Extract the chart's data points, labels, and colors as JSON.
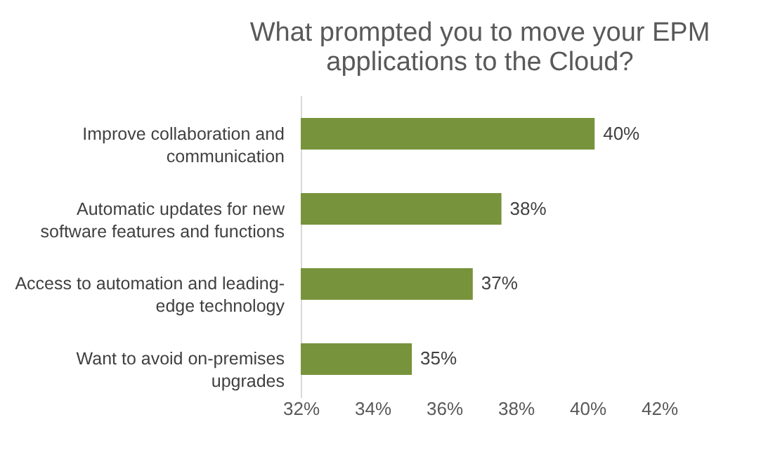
{
  "chart_data": {
    "type": "bar",
    "orientation": "horizontal",
    "title": "What prompted you to move your EPM applications to the Cloud?",
    "categories": [
      "Improve collaboration and communication",
      "Automatic updates for new software features and functions",
      "Access to automation and leading-edge technology",
      "Want to avoid on-premises upgrades"
    ],
    "values": [
      40.2,
      37.6,
      36.8,
      35.1
    ],
    "value_labels": [
      "40%",
      "38%",
      "37%",
      "35%"
    ],
    "color": "#77933c",
    "xlim": [
      32,
      42
    ],
    "xticks": [
      {
        "value": 32,
        "label": "32%"
      },
      {
        "value": 34,
        "label": "34%"
      },
      {
        "value": 36,
        "label": "36%"
      },
      {
        "value": 38,
        "label": "38%"
      },
      {
        "value": 40,
        "label": "40%"
      },
      {
        "value": 42,
        "label": "42%"
      }
    ],
    "grid": false
  }
}
